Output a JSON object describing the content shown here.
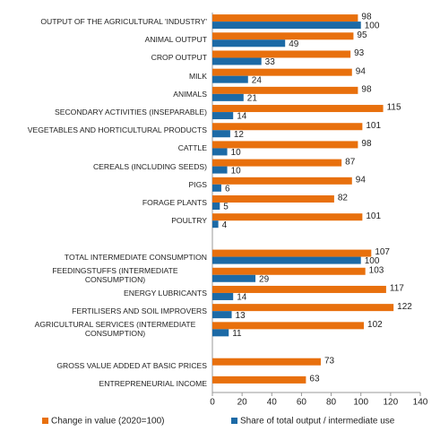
{
  "chart_data": {
    "type": "hbar",
    "categories": [
      "OUTPUT OF THE AGRICULTURAL 'INDUSTRY'",
      "ANIMAL OUTPUT",
      "CROP OUTPUT",
      "MILK",
      "ANIMALS",
      "SECONDARY ACTIVITIES (INSEPARABLE)",
      "VEGETABLES AND HORTICULTURAL PRODUCTS",
      "CATTLE",
      "CEREALS (INCLUDING SEEDS)",
      "PIGS",
      "FORAGE PLANTS",
      "POULTRY",
      null,
      "TOTAL INTERMEDIATE CONSUMPTION",
      "FEEDINGSTUFFS (INTERMEDIATE CONSUMPTION)",
      "ENERGY  LUBRICANTS",
      "FERTILISERS AND SOIL IMPROVERS",
      "AGRICULTURAL SERVICES (INTERMEDIATE CONSUMPTION)",
      null,
      "GROSS VALUE ADDED AT BASIC PRICES",
      "ENTREPRENEURIAL INCOME"
    ],
    "series": [
      {
        "name": "Change in value (2020=100)",
        "color": "#e8700d",
        "values": [
          98,
          95,
          93,
          94,
          98,
          115,
          101,
          98,
          87,
          94,
          82,
          101,
          null,
          107,
          103,
          117,
          122,
          102,
          null,
          73,
          63
        ]
      },
      {
        "name": "Share of total output / intermediate use",
        "color": "#1c6aa6",
        "values": [
          100,
          49,
          33,
          24,
          21,
          14,
          12,
          10,
          10,
          6,
          5,
          4,
          null,
          100,
          29,
          14,
          13,
          11,
          null,
          null,
          null
        ]
      }
    ],
    "xlim": [
      0,
      140
    ],
    "xticks": [
      0,
      20,
      40,
      60,
      80,
      100,
      120,
      140
    ],
    "legend": "bottom"
  }
}
